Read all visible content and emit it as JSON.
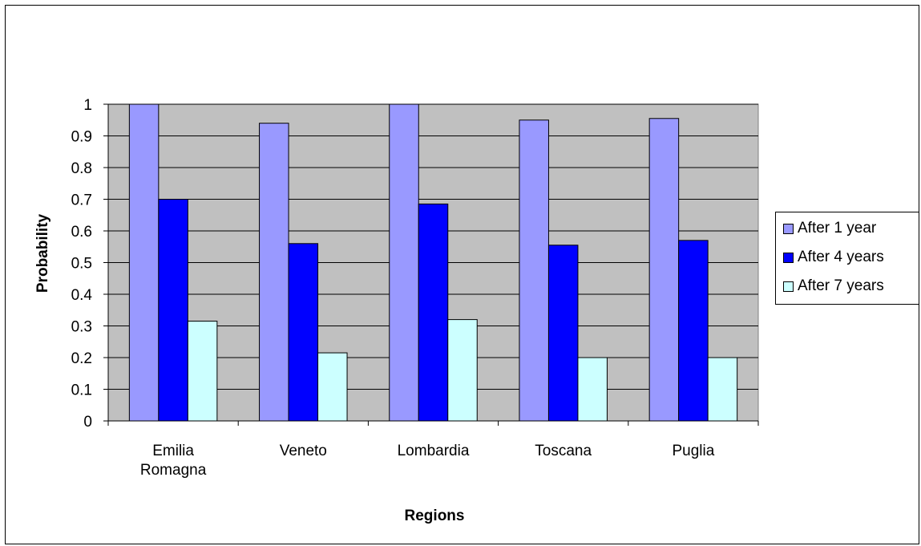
{
  "chart_data": {
    "type": "bar",
    "categories": [
      [
        "Emilia",
        "Romagna"
      ],
      [
        "Veneto"
      ],
      [
        "Lombardia"
      ],
      [
        "Toscana"
      ],
      [
        "Puglia"
      ]
    ],
    "series": [
      {
        "name": "After 1 year",
        "color": "#9999ff",
        "values": [
          1.0,
          0.94,
          1.0,
          0.95,
          0.955
        ]
      },
      {
        "name": "After 4 years",
        "color": "#0000ff",
        "values": [
          0.7,
          0.56,
          0.685,
          0.555,
          0.57
        ]
      },
      {
        "name": "After 7 years",
        "color": "#ccffff",
        "values": [
          0.315,
          0.215,
          0.32,
          0.2,
          0.2
        ]
      }
    ],
    "xlabel": "Regions",
    "ylabel": "Probability",
    "ylim": [
      0,
      1
    ],
    "yticks": [
      "0",
      "0.1",
      "0.2",
      "0.3",
      "0.4",
      "0.5",
      "0.6",
      "0.7",
      "0.8",
      "0.9",
      "1"
    ],
    "grid": true,
    "plot_background": "#c0c0c0",
    "legend_position": "right"
  }
}
